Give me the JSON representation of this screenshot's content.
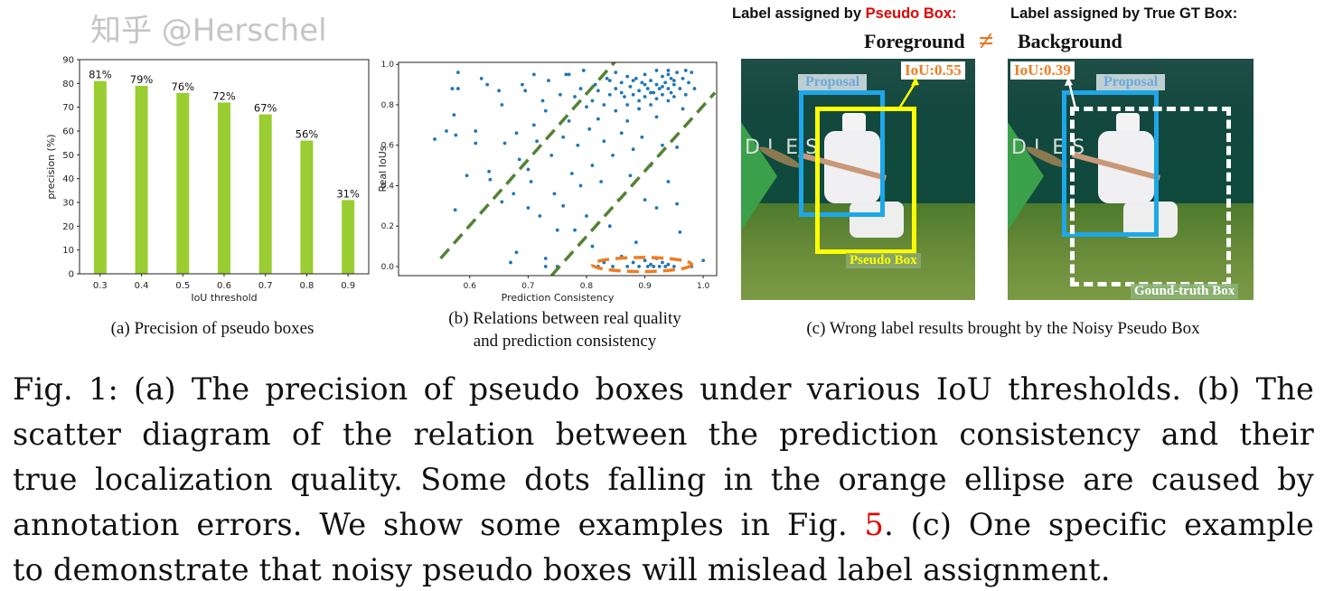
{
  "chart_data": [
    {
      "type": "bar",
      "categories": [
        "0.3",
        "0.4",
        "0.5",
        "0.6",
        "0.7",
        "0.8",
        "0.9"
      ],
      "values": [
        81,
        79,
        76,
        72,
        67,
        56,
        31
      ],
      "data_labels": [
        "81%",
        "79%",
        "76%",
        "72%",
        "67%",
        "56%",
        "31%"
      ],
      "xlabel": "IoU threshold",
      "ylabel": "precision (%)",
      "ylim": [
        0,
        90
      ],
      "yticks": [
        "0",
        "10",
        "20",
        "30",
        "40",
        "50",
        "60",
        "70",
        "80",
        "90"
      ],
      "bar_color": "#9acd32",
      "grid": false
    },
    {
      "type": "scatter",
      "xlabel": "Prediction Consistency",
      "ylabel": "Real IoUs",
      "xlim": [
        0.478,
        1.023
      ],
      "ylim": [
        -0.045,
        1.01
      ],
      "xticks": [
        "0.6",
        "0.7",
        "0.8",
        "0.9",
        "1.0"
      ],
      "yticks": [
        "0.0",
        "0.2",
        "0.4",
        "0.6",
        "0.8",
        "1.0"
      ],
      "point_color": "#1f77b4",
      "grid": false,
      "annotations": {
        "dashed_lines": [
          {
            "from": [
              0.55,
              0.04
            ],
            "to": [
              0.86,
              1.05
            ],
            "color": "#548235"
          },
          {
            "from": [
              0.74,
              -0.045
            ],
            "to": [
              1.02,
              0.86
            ],
            "color": "#548235"
          }
        ],
        "ellipse": {
          "center": [
            0.895,
            0.01
          ],
          "x_radius": 0.085,
          "y_radius": 0.035,
          "color": "#f07c20"
        }
      },
      "points": [
        [
          0.54,
          0.63
        ],
        [
          0.56,
          0.67
        ],
        [
          0.57,
          0.88
        ],
        [
          0.573,
          0.75
        ],
        [
          0.576,
          0.65
        ],
        [
          0.58,
          0.96
        ],
        [
          0.58,
          0.88
        ],
        [
          0.575,
          0.28
        ],
        [
          0.595,
          0.45
        ],
        [
          0.61,
          0.67
        ],
        [
          0.61,
          0.61
        ],
        [
          0.62,
          0.93
        ],
        [
          0.63,
          0.9
        ],
        [
          0.633,
          0.47
        ],
        [
          0.635,
          0.43
        ],
        [
          0.65,
          0.87
        ],
        [
          0.655,
          0.8
        ],
        [
          0.66,
          0.61
        ],
        [
          0.655,
          0.32
        ],
        [
          0.67,
          0.02
        ],
        [
          0.675,
          0.36
        ],
        [
          0.68,
          0.66
        ],
        [
          0.68,
          0.07
        ],
        [
          0.685,
          0.53
        ],
        [
          0.69,
          0.9
        ],
        [
          0.695,
          0.87
        ],
        [
          0.7,
          0.48
        ],
        [
          0.7,
          0.29
        ],
        [
          0.705,
          0.42
        ],
        [
          0.71,
          0.95
        ],
        [
          0.71,
          0.7
        ],
        [
          0.715,
          0.62
        ],
        [
          0.72,
          0.25
        ],
        [
          0.725,
          0.82
        ],
        [
          0.73,
          0.77
        ],
        [
          0.73,
          0.04
        ],
        [
          0.73,
          0.0
        ],
        [
          0.735,
          0.92
        ],
        [
          0.74,
          0.55
        ],
        [
          0.745,
          0.36
        ],
        [
          0.75,
          0.18
        ],
        [
          0.75,
          0.0
        ],
        [
          0.755,
          0.85
        ],
        [
          0.76,
          0.64
        ],
        [
          0.76,
          0.3
        ],
        [
          0.765,
          0.95
        ],
        [
          0.77,
          0.72
        ],
        [
          0.775,
          0.46
        ],
        [
          0.78,
          0.84
        ],
        [
          0.78,
          0.18
        ],
        [
          0.785,
          0.6
        ],
        [
          0.79,
          0.4
        ],
        [
          0.795,
          0.97
        ],
        [
          0.8,
          0.79
        ],
        [
          0.8,
          0.25
        ],
        [
          0.805,
          0.68
        ],
        [
          0.81,
          0.5
        ],
        [
          0.81,
          0.1
        ],
        [
          0.815,
          0.9
        ],
        [
          0.82,
          0.87
        ],
        [
          0.82,
          0.73
        ],
        [
          0.82,
          0.0
        ],
        [
          0.825,
          0.42
        ],
        [
          0.83,
          0.62
        ],
        [
          0.83,
          0.02
        ],
        [
          0.835,
          0.93
        ],
        [
          0.84,
          0.85
        ],
        [
          0.84,
          0.2
        ],
        [
          0.845,
          0.55
        ],
        [
          0.845,
          0.0
        ],
        [
          0.85,
          0.96
        ],
        [
          0.85,
          0.88
        ],
        [
          0.85,
          0.77
        ],
        [
          0.855,
          0.33
        ],
        [
          0.86,
          0.91
        ],
        [
          0.86,
          0.66
        ],
        [
          0.86,
          0.05
        ],
        [
          0.865,
          0.84
        ],
        [
          0.87,
          0.94
        ],
        [
          0.87,
          0.72
        ],
        [
          0.87,
          0.0
        ],
        [
          0.875,
          0.89
        ],
        [
          0.875,
          0.45
        ],
        [
          0.88,
          0.85
        ],
        [
          0.88,
          0.58
        ],
        [
          0.88,
          0.02
        ],
        [
          0.885,
          0.93
        ],
        [
          0.885,
          0.12
        ],
        [
          0.89,
          0.87
        ],
        [
          0.89,
          0.78
        ],
        [
          0.89,
          0.0
        ],
        [
          0.895,
          0.91
        ],
        [
          0.895,
          0.64
        ],
        [
          0.9,
          0.95
        ],
        [
          0.9,
          0.84
        ],
        [
          0.9,
          0.33
        ],
        [
          0.9,
          0.03
        ],
        [
          0.905,
          0.88
        ],
        [
          0.905,
          0.0
        ],
        [
          0.91,
          0.92
        ],
        [
          0.91,
          0.8
        ],
        [
          0.91,
          0.5
        ],
        [
          0.91,
          0.01
        ],
        [
          0.915,
          0.86
        ],
        [
          0.915,
          0.0
        ],
        [
          0.92,
          0.97
        ],
        [
          0.92,
          0.9
        ],
        [
          0.92,
          0.74
        ],
        [
          0.92,
          0.29
        ],
        [
          0.92,
          0.04
        ],
        [
          0.925,
          0.88
        ],
        [
          0.925,
          0.0
        ],
        [
          0.93,
          0.94
        ],
        [
          0.93,
          0.85
        ],
        [
          0.93,
          0.6
        ],
        [
          0.93,
          0.02
        ],
        [
          0.935,
          0.91
        ],
        [
          0.935,
          0.0
        ],
        [
          0.94,
          0.97
        ],
        [
          0.94,
          0.88
        ],
        [
          0.94,
          0.82
        ],
        [
          0.94,
          0.42
        ],
        [
          0.94,
          0.01
        ],
        [
          0.945,
          0.93
        ],
        [
          0.945,
          0.86
        ],
        [
          0.95,
          0.9
        ],
        [
          0.95,
          0.84
        ],
        [
          0.95,
          0.0
        ],
        [
          0.955,
          0.96
        ],
        [
          0.955,
          0.59
        ],
        [
          0.955,
          0.31
        ],
        [
          0.96,
          0.88
        ],
        [
          0.96,
          0.17
        ],
        [
          0.965,
          0.93
        ],
        [
          0.965,
          0.78
        ],
        [
          0.97,
          0.97
        ],
        [
          0.97,
          0.85
        ],
        [
          0.975,
          0.91
        ],
        [
          0.98,
          0.96
        ],
        [
          0.98,
          0.0
        ],
        [
          0.985,
          0.88
        ],
        [
          1.0,
          0.03
        ],
        [
          0.77,
          0.95
        ],
        [
          0.79,
          0.88
        ],
        [
          0.81,
          0.82
        ],
        [
          0.83,
          0.8
        ],
        [
          0.87,
          0.8
        ],
        [
          0.89,
          0.82
        ],
        [
          0.91,
          0.86
        ],
        [
          0.93,
          0.89
        ],
        [
          0.94,
          0.95
        ],
        [
          0.95,
          0.92
        ],
        [
          0.92,
          0.83
        ],
        [
          0.9,
          0.9
        ],
        [
          0.88,
          0.92
        ],
        [
          0.86,
          0.86
        ],
        [
          0.84,
          0.92
        ]
      ]
    }
  ],
  "panel_c": {
    "header_left_prefix": "Label assigned by ",
    "header_left_highlight": "Pseudo Box:",
    "header_right": "Label assigned by True GT Box:",
    "foreground": "Foreground",
    "background": "Background",
    "not_equal_symbol": "≠",
    "left_image": {
      "iou": "IoU:0.55",
      "proposal": "Proposal",
      "pseudo_box": "Pseudo Box",
      "wall_text": "DLES"
    },
    "right_image": {
      "iou": "IoU:0.39",
      "proposal": "Proposal",
      "gt_box": "Gound-truth Box",
      "wall_text": "DLES"
    },
    "colors": {
      "proposal": "#1ea7e8",
      "pseudo_box": "#ffff00",
      "gt_box": "#ffffff",
      "iou_text": "#f07c20",
      "highlight": "#e00000"
    }
  },
  "subcaptions": {
    "a": "(a) Precision of pseudo boxes",
    "b_line1": "(b) Relations between  real quality",
    "b_line2": "and prediction consistency",
    "c": "(c) Wrong label results brought by the Noisy Pseudo Box"
  },
  "caption": {
    "line1": "Fig. 1: (a) The precision of pseudo boxes under various IoU thresholds. (b) The",
    "line2": "scatter diagram of the relation between the prediction consistency and their",
    "line3": "true localization quality. Some dots falling in the orange ellipse are caused by",
    "line4_pre": "annotation errors. We show some examples in Fig. ",
    "line4_ref": "5",
    "line4_post": ". (c) One specific example",
    "line5": "to demonstrate that noisy pseudo boxes will mislead label assignment."
  },
  "watermark": "知乎 @Herschel"
}
